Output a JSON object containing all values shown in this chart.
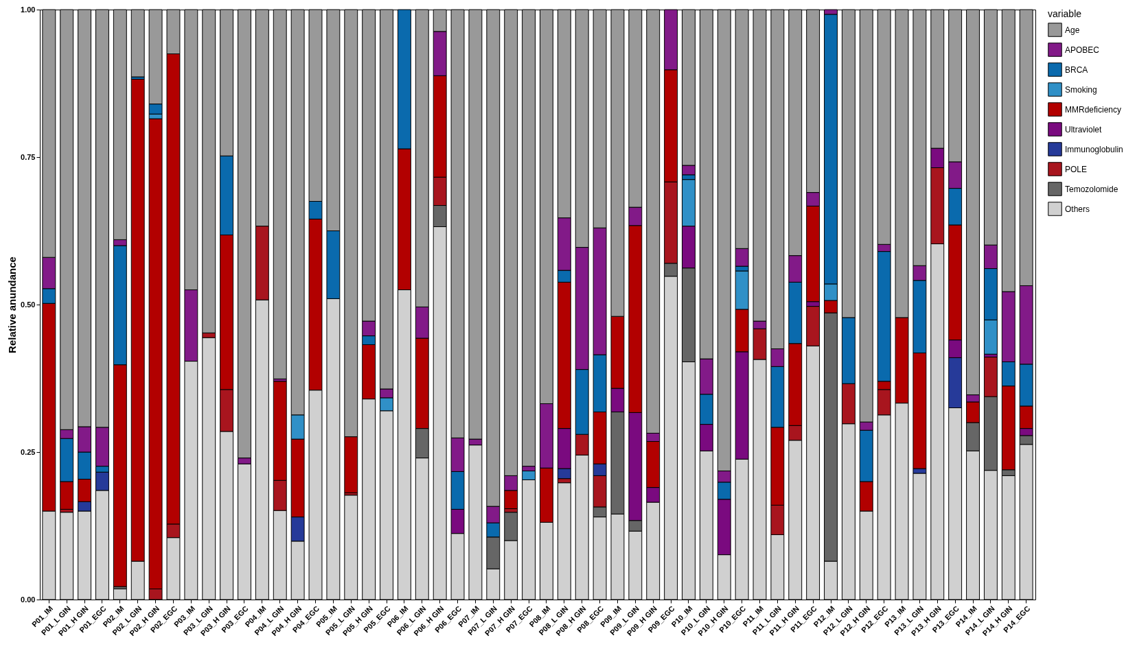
{
  "chart_data": {
    "type": "bar",
    "stacked": true,
    "ylabel": "Relative anundance",
    "legend_title": "variable",
    "legend": "right",
    "grid": false,
    "categories": [
      "P01_IM",
      "P01_L GIN",
      "P01_H GIN",
      "P01_EGC",
      "P02_IM",
      "P02_L GIN",
      "P02_H GIN",
      "P02_EGC",
      "P03_IM",
      "P03_L GIN",
      "P03_H GIN",
      "P03_EGC",
      "P04_IM",
      "P04_L GIN",
      "P04_H GIN",
      "P04_EGC",
      "P05_IM",
      "P05_L GIN",
      "P05_H GIN",
      "P05_EGC",
      "P06_IM",
      "P06_L GIN",
      "P06_H GIN",
      "P06_EGC",
      "P07_IM",
      "P07_L GIN",
      "P07_H GIN",
      "P07_EGC",
      "P08_IM",
      "P08_L GIN",
      "P08_H GIN",
      "P08_EGC",
      "P09_IM",
      "P09_L GIN",
      "P09_H GIN",
      "P09_EGC",
      "P10_IM",
      "P10_L GIN",
      "P10_H GIN",
      "P10_EGC",
      "P11_IM",
      "P11_L GIN",
      "P11_H GIN",
      "P11_EGC",
      "P12_IM",
      "P12_L GIN",
      "P12_H GIN",
      "P12_EGC",
      "P13_IM",
      "P13_L GIN",
      "P13_H GIN",
      "P13_EGC",
      "P14_IM",
      "P14_L GIN",
      "P14_H GIN",
      "P14_EGC"
    ],
    "ylim": [
      0,
      1
    ],
    "yticks": [
      {
        "value": 0,
        "label": "0.00"
      },
      {
        "value": 0.25,
        "label": "0.25"
      },
      {
        "value": 0.5,
        "label": "0.50"
      },
      {
        "value": 0.75,
        "label": "0.75"
      },
      {
        "value": 1,
        "label": "1.00"
      }
    ],
    "series": [
      {
        "name": "Others",
        "color": "#d0d0d0",
        "values": [
          0.15,
          0.148,
          0.15,
          0.185,
          0.018,
          0.065,
          null,
          0.105,
          0.404,
          0.444,
          0.285,
          0.23,
          0.508,
          0.151,
          0.099,
          0.355,
          0.51,
          0.177,
          0.34,
          0.32,
          0.525,
          0.24,
          0.632,
          0.112,
          0.262,
          0.052,
          0.1,
          0.203,
          0.131,
          0.198,
          0.245,
          0.14,
          0.145,
          0.116,
          0.165,
          0.548,
          0.403,
          0.252,
          0.076,
          0.238,
          0.407,
          0.11,
          0.27,
          0.43,
          0.065,
          0.298,
          0.15,
          0.313,
          0.333,
          0.214,
          0.603,
          0.325,
          0.252,
          0.219,
          0.21,
          0.263
        ]
      },
      {
        "name": "Temozolomide",
        "color": "#666666",
        "values": [
          null,
          null,
          null,
          null,
          0.004,
          null,
          null,
          null,
          null,
          null,
          null,
          null,
          null,
          null,
          null,
          null,
          null,
          null,
          null,
          null,
          null,
          0.05,
          0.036,
          null,
          null,
          0.054,
          0.048,
          null,
          null,
          null,
          null,
          0.017,
          0.173,
          0.018,
          null,
          0.022,
          0.159,
          null,
          null,
          null,
          null,
          null,
          null,
          null,
          0.421,
          null,
          null,
          null,
          null,
          null,
          null,
          null,
          0.048,
          0.125,
          0.01,
          0.015
        ]
      },
      {
        "name": "POLE",
        "color": "#a8151e",
        "values": [
          null,
          0.005,
          null,
          null,
          null,
          null,
          0.018,
          0.023,
          null,
          0.008,
          0.071,
          null,
          0.125,
          0.051,
          null,
          null,
          null,
          0.004,
          null,
          null,
          null,
          null,
          0.048,
          null,
          null,
          null,
          0.006,
          null,
          null,
          0.007,
          0.035,
          0.053,
          null,
          null,
          null,
          0.138,
          null,
          null,
          null,
          null,
          0.052,
          0.05,
          0.025,
          0.067,
          null,
          0.068,
          null,
          0.043,
          null,
          null,
          0.129,
          null,
          null,
          0.067,
          null,
          null
        ]
      },
      {
        "name": "Immunoglobulin",
        "color": "#263a99",
        "values": [
          null,
          null,
          0.016,
          0.031,
          null,
          null,
          null,
          null,
          null,
          null,
          null,
          null,
          null,
          null,
          0.041,
          null,
          null,
          null,
          null,
          null,
          null,
          null,
          null,
          null,
          null,
          null,
          null,
          null,
          null,
          0.017,
          null,
          0.02,
          null,
          null,
          null,
          null,
          null,
          null,
          null,
          null,
          null,
          null,
          null,
          null,
          null,
          null,
          null,
          null,
          null,
          0.008,
          null,
          0.085,
          null,
          null,
          null,
          null
        ]
      },
      {
        "name": "Ultraviolet",
        "color": "#7a0a7f",
        "values": [
          null,
          null,
          null,
          null,
          null,
          null,
          null,
          null,
          null,
          null,
          null,
          null,
          null,
          null,
          null,
          null,
          null,
          null,
          null,
          null,
          null,
          null,
          null,
          0.041,
          null,
          null,
          null,
          null,
          null,
          0.068,
          null,
          null,
          0.04,
          0.183,
          0.025,
          null,
          0.071,
          0.045,
          0.094,
          0.182,
          null,
          null,
          null,
          0.008,
          null,
          null,
          null,
          null,
          null,
          null,
          0.033,
          0.03,
          null,
          0.005,
          null,
          0.012
        ]
      },
      {
        "name": "MMRdeficiency",
        "color": "#b20000",
        "values": [
          0.352,
          0.047,
          0.038,
          null,
          0.376,
          0.817,
          0.797,
          0.797,
          null,
          null,
          0.262,
          null,
          null,
          0.168,
          0.132,
          0.29,
          null,
          0.095,
          0.092,
          null,
          0.239,
          0.153,
          0.172,
          null,
          null,
          null,
          0.031,
          null,
          0.092,
          0.248,
          null,
          0.088,
          0.122,
          0.317,
          0.078,
          0.19,
          null,
          null,
          null,
          0.072,
          null,
          0.132,
          0.139,
          0.162,
          0.021,
          null,
          0.05,
          0.014,
          0.145,
          0.196,
          null,
          0.195,
          0.035,
          null,
          0.142,
          0.038
        ]
      },
      {
        "name": "Smoking",
        "color": "#3090c7",
        "values": [
          null,
          null,
          null,
          null,
          null,
          null,
          0.008,
          null,
          null,
          null,
          null,
          null,
          null,
          null,
          0.041,
          null,
          null,
          null,
          null,
          0.022,
          null,
          null,
          null,
          null,
          null,
          null,
          null,
          0.015,
          null,
          null,
          null,
          null,
          null,
          null,
          null,
          null,
          0.079,
          null,
          null,
          0.065,
          null,
          null,
          null,
          null,
          0.028,
          null,
          null,
          null,
          null,
          null,
          null,
          null,
          null,
          0.058,
          null,
          null
        ]
      },
      {
        "name": "BRCA",
        "color": "#0a6aad",
        "values": [
          0.025,
          0.073,
          0.046,
          0.01,
          0.202,
          0.004,
          0.017,
          null,
          null,
          null,
          0.134,
          null,
          null,
          null,
          null,
          0.03,
          0.115,
          null,
          0.015,
          null,
          0.236,
          null,
          null,
          0.064,
          null,
          0.024,
          null,
          null,
          null,
          0.02,
          0.11,
          0.097,
          null,
          null,
          null,
          null,
          0.008,
          0.051,
          0.029,
          0.008,
          null,
          0.103,
          0.104,
          null,
          0.457,
          0.112,
          0.087,
          0.22,
          null,
          0.123,
          null,
          0.062,
          null,
          0.087,
          0.041,
          0.071
        ]
      },
      {
        "name": "APOBEC",
        "color": "#821a88",
        "values": [
          0.053,
          0.015,
          0.043,
          0.066,
          0.01,
          null,
          null,
          null,
          0.121,
          null,
          null,
          0.01,
          null,
          0.004,
          null,
          null,
          null,
          null,
          0.025,
          0.015,
          null,
          0.053,
          0.075,
          0.057,
          0.01,
          0.028,
          0.025,
          0.008,
          0.109,
          0.089,
          0.207,
          0.215,
          null,
          0.031,
          0.014,
          0.102,
          0.016,
          0.06,
          0.019,
          0.03,
          0.013,
          0.03,
          0.045,
          0.023,
          0.008,
          null,
          0.014,
          0.012,
          null,
          0.025,
          null,
          0.045,
          0.012,
          0.04,
          0.119,
          0.133
        ]
      },
      {
        "name": "Age",
        "color": "#999999",
        "values": [
          0.42,
          0.712,
          0.707,
          0.708,
          0.39,
          0.114,
          0.16,
          0.075,
          0.475,
          0.548,
          0.248,
          0.76,
          0.367,
          0.626,
          0.687,
          0.325,
          0.375,
          0.724,
          0.528,
          0.643,
          null,
          0.504,
          0.037,
          0.726,
          0.728,
          0.842,
          0.79,
          0.774,
          0.668,
          0.353,
          0.403,
          0.37,
          0.52,
          0.335,
          0.718,
          null,
          0.264,
          0.592,
          0.782,
          0.405,
          0.528,
          0.575,
          0.417,
          0.31,
          null,
          0.522,
          0.699,
          0.398,
          0.522,
          0.434,
          0.235,
          0.258,
          0.653,
          0.399,
          0.478,
          0.468
        ]
      }
    ]
  }
}
